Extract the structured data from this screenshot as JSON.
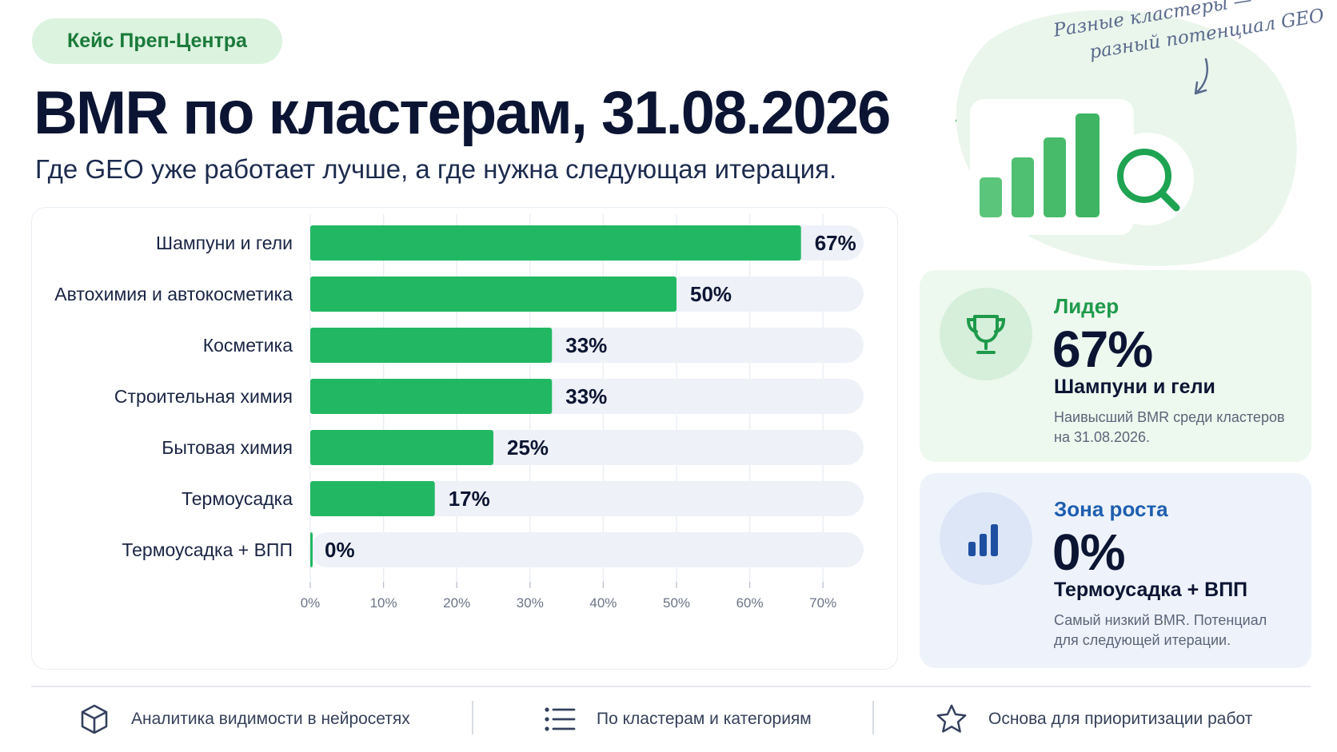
{
  "badge": "Кейс Преп-Центра",
  "title": "BMR по кластерам, 31.08.2026",
  "subtitle": "Где GEO уже работает лучше, а где нужна следующая итерация.",
  "handnote": {
    "line1": "Разные кластеры —",
    "line2": "разный потенциал GEO"
  },
  "chart_data": {
    "type": "bar",
    "orientation": "horizontal",
    "categories": [
      "Шампуни и гели",
      "Автохимия и автокосметика",
      "Косметика",
      "Строительная химия",
      "Бытовая химия",
      "Термоусадка",
      "Термоусадка + ВПП"
    ],
    "values": [
      67,
      50,
      33,
      33,
      25,
      17,
      0
    ],
    "value_labels": [
      "67%",
      "50%",
      "33%",
      "33%",
      "25%",
      "17%",
      "0%"
    ],
    "xlim": [
      0,
      70
    ],
    "xticks": [
      "0%",
      "10%",
      "20%",
      "30%",
      "40%",
      "50%",
      "60%",
      "70%"
    ],
    "grid": true,
    "bar_color": "#22b863",
    "track_color": "#eef1f7"
  },
  "leader": {
    "label": "Лидер",
    "value": "67%",
    "name": "Шампуни и гели",
    "desc": "Наивысший BMR среди кластеров на 31.08.2026.",
    "icon": "trophy-icon"
  },
  "growth": {
    "label": "Зона роста",
    "value": "0%",
    "name": "Термоусадка + ВПП",
    "desc": "Самый низкий BMR. Потенциал для следующей итерации.",
    "icon": "bar-chart-icon"
  },
  "features": [
    {
      "icon": "cube-icon",
      "text": "Аналитика видимости в нейросетях"
    },
    {
      "icon": "list-icon",
      "text": "По кластерам и категориям"
    },
    {
      "icon": "star-icon",
      "text": "Основа для приоритизации работ"
    }
  ],
  "colors": {
    "green": "#22b863",
    "dark": "#0b1533",
    "blue": "#1e5fb0"
  }
}
